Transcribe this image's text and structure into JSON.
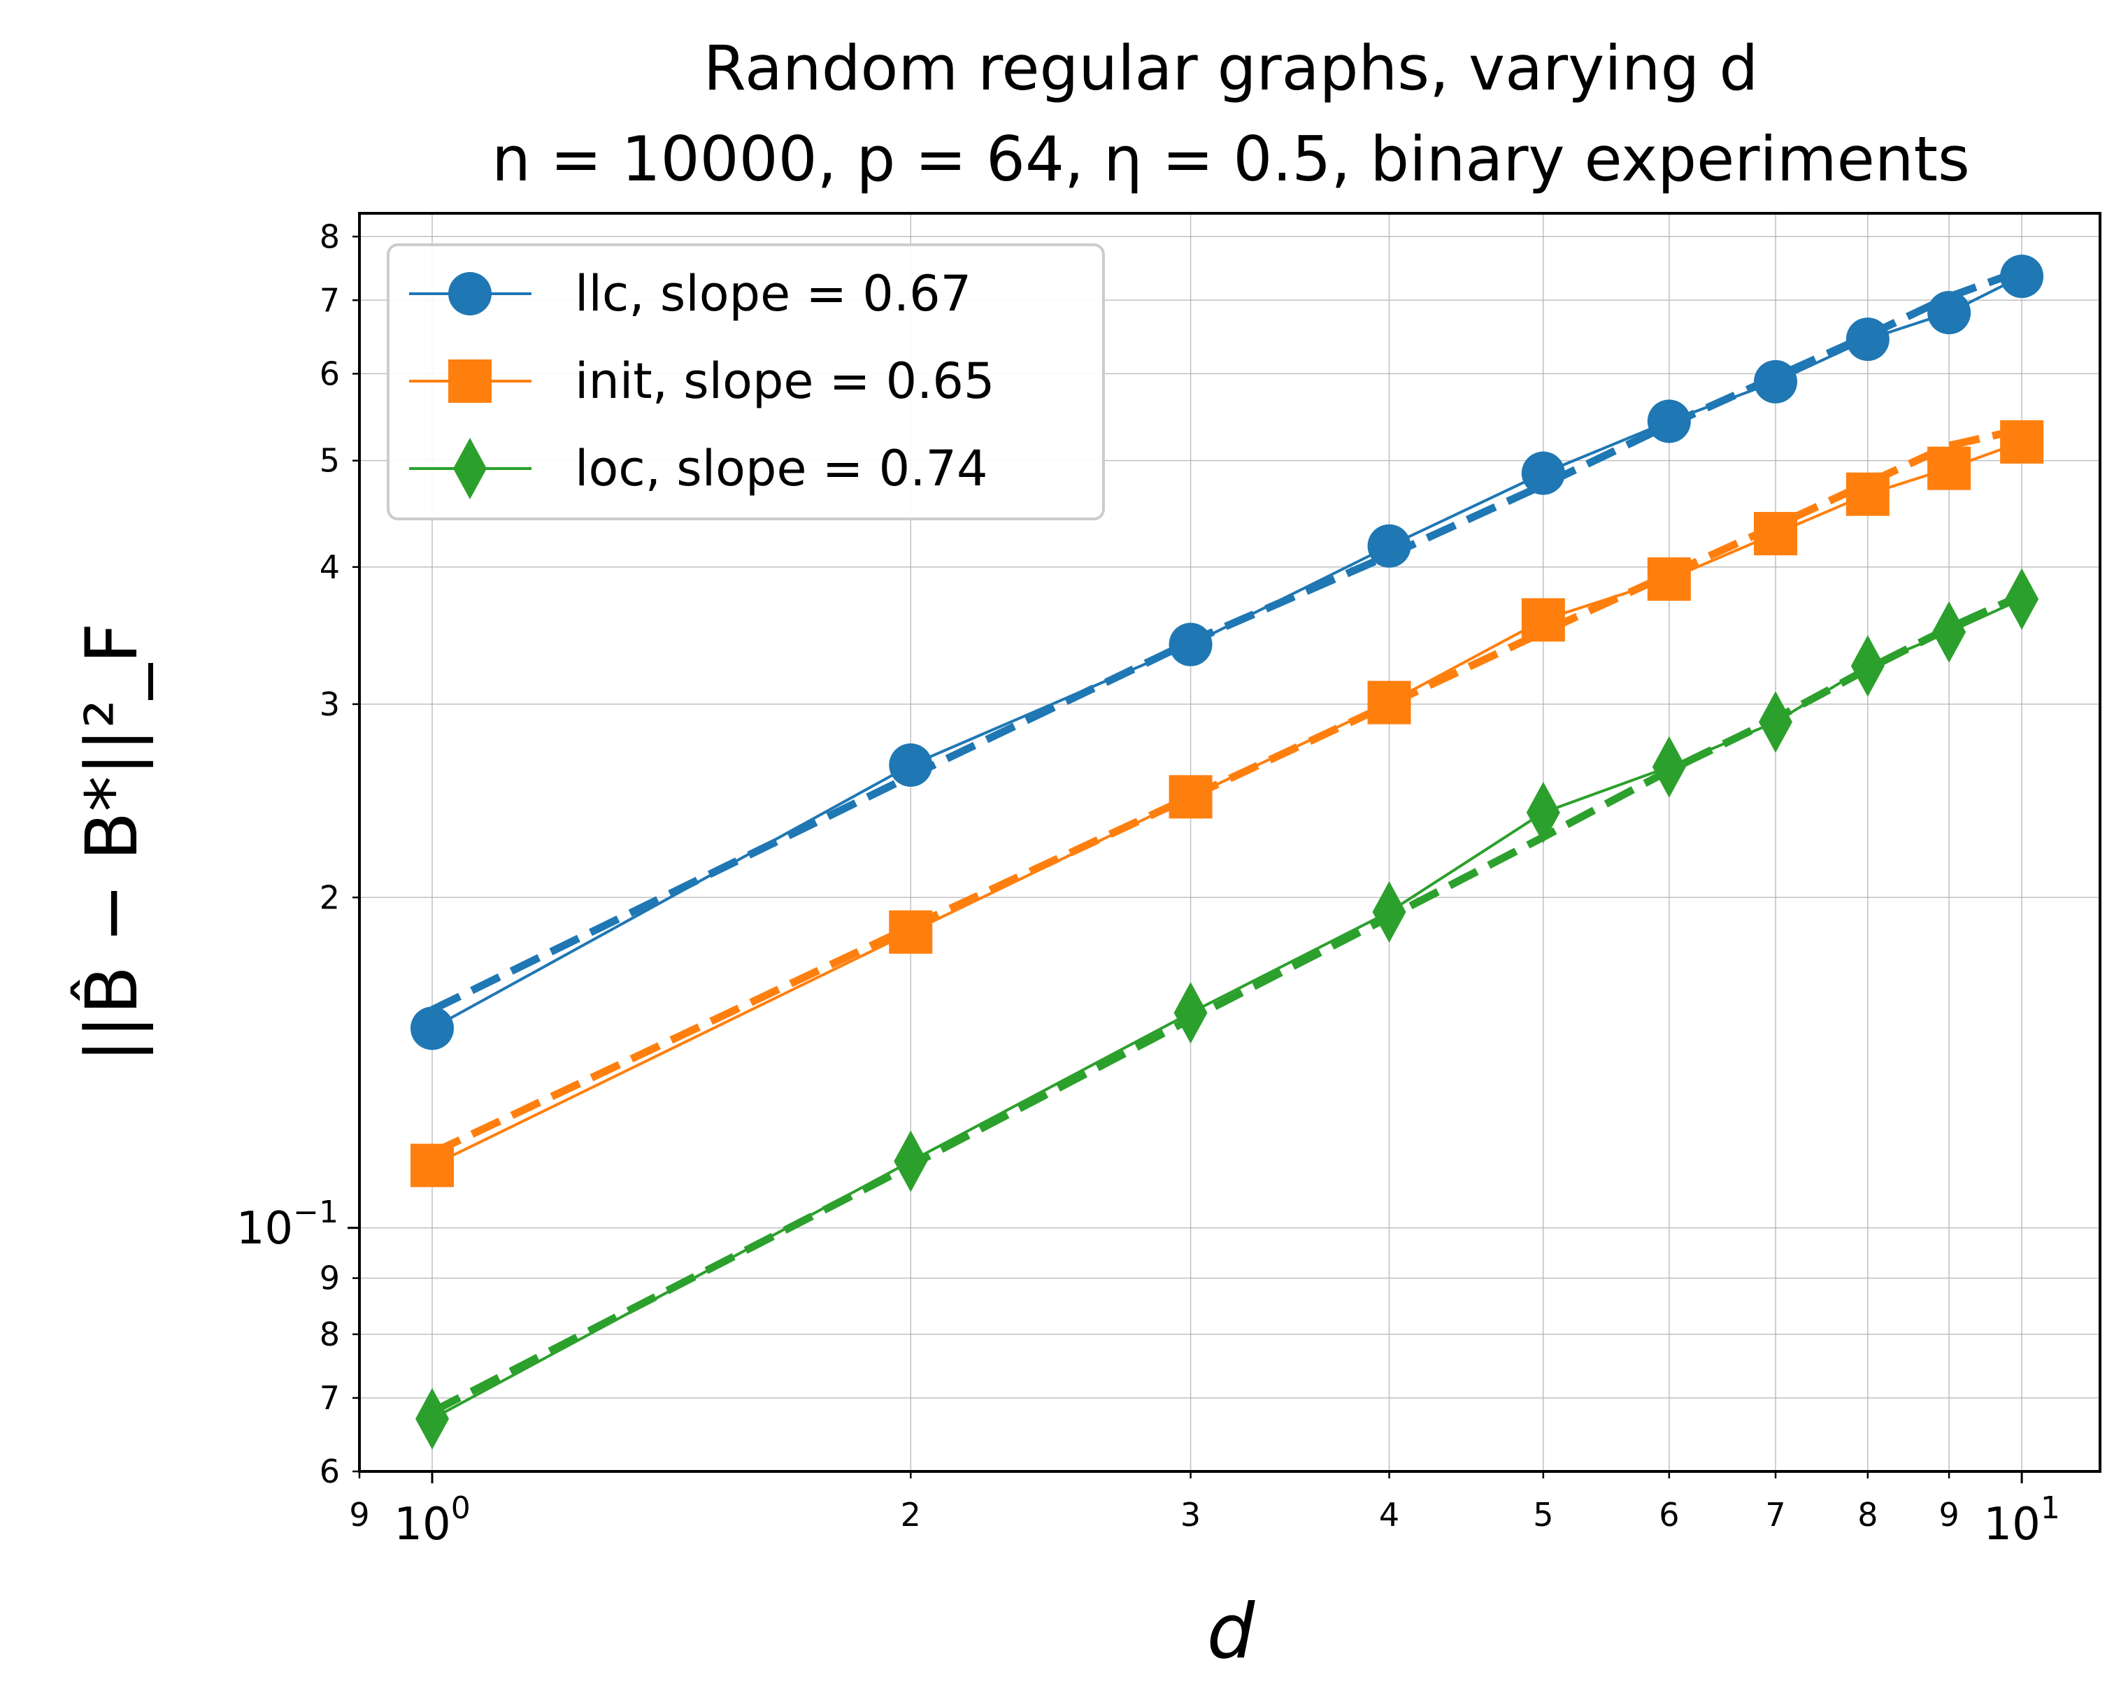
{
  "chart_data": {
    "type": "line",
    "title_line1": "Random regular graphs, varying d",
    "title_line2": "n = 10000, p = 64, η = 0.5, binary experiments",
    "xlabel": "d",
    "ylabel": "||B̂ − B*||²_F",
    "xscale": "log",
    "yscale": "log",
    "xlim": [
      0.9,
      11.2
    ],
    "ylim": [
      0.06,
      0.84
    ],
    "grid": true,
    "legend_position": "top-left",
    "x": [
      1,
      2,
      3,
      4,
      5,
      6,
      7,
      8,
      9,
      10
    ],
    "x_major_ticks": [
      {
        "value": 1,
        "base": "10",
        "exp": "0"
      },
      {
        "value": 10,
        "base": "10",
        "exp": "1"
      }
    ],
    "x_minor_ticks": [
      {
        "value": 0.9,
        "label": "9"
      },
      {
        "value": 2,
        "label": "2"
      },
      {
        "value": 3,
        "label": "3"
      },
      {
        "value": 4,
        "label": "4"
      },
      {
        "value": 5,
        "label": "5"
      },
      {
        "value": 6,
        "label": "6"
      },
      {
        "value": 7,
        "label": "7"
      },
      {
        "value": 8,
        "label": "8"
      },
      {
        "value": 9,
        "label": "9"
      }
    ],
    "y_major_ticks": [
      {
        "value": 0.1,
        "base": "10",
        "exp": "−1"
      }
    ],
    "y_minor_ticks": [
      {
        "value": 0.06,
        "label": "6"
      },
      {
        "value": 0.07,
        "label": "7"
      },
      {
        "value": 0.08,
        "label": "8"
      },
      {
        "value": 0.09,
        "label": "9"
      },
      {
        "value": 0.2,
        "label": "2"
      },
      {
        "value": 0.3,
        "label": "3"
      },
      {
        "value": 0.4,
        "label": "4"
      },
      {
        "value": 0.5,
        "label": "5"
      },
      {
        "value": 0.6,
        "label": "6"
      },
      {
        "value": 0.7,
        "label": "7"
      },
      {
        "value": 0.8,
        "label": "8"
      }
    ],
    "series": [
      {
        "name": "llc, slope = 0.67",
        "color": "#1f77b4",
        "marker": "circle",
        "values": [
          0.152,
          0.264,
          0.34,
          0.418,
          0.487,
          0.543,
          0.59,
          0.645,
          0.682,
          0.736
        ],
        "fit": [
          0.158,
          0.258,
          0.342,
          0.41,
          0.475,
          0.539,
          0.596,
          0.65,
          0.705,
          0.745
        ]
      },
      {
        "name": "init, slope = 0.65",
        "color": "#ff7f0e",
        "marker": "square",
        "values": [
          0.114,
          0.186,
          0.247,
          0.301,
          0.358,
          0.39,
          0.429,
          0.466,
          0.492,
          0.52
        ],
        "fit": [
          0.117,
          0.188,
          0.247,
          0.3,
          0.349,
          0.394,
          0.436,
          0.477,
          0.516,
          0.534
        ]
      },
      {
        "name": "loc, slope = 0.74",
        "color": "#2ca02c",
        "marker": "diamond",
        "values": [
          0.067,
          0.115,
          0.157,
          0.194,
          0.239,
          0.263,
          0.289,
          0.325,
          0.349,
          0.374
        ],
        "fit": [
          0.068,
          0.114,
          0.155,
          0.192,
          0.227,
          0.261,
          0.291,
          0.323,
          0.352,
          0.377
        ]
      }
    ]
  }
}
